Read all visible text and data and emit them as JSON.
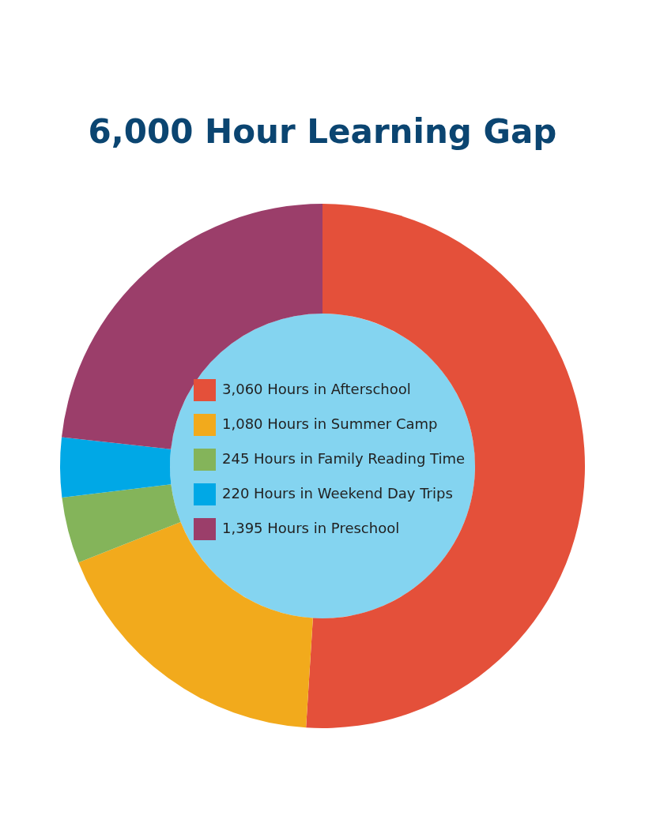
{
  "chart_data": {
    "type": "donut",
    "title": "6,000 Hour Learning Gap",
    "categories": [
      "3,060 Hours in Afterschool",
      "1,080 Hours in Summer Camp",
      "245 Hours in Family Reading Time",
      "220 Hours in Weekend Day Trips",
      "1,395 Hours in Preschool"
    ],
    "values": [
      3060,
      1080,
      245,
      220,
      1395
    ],
    "colors": [
      "#e4503a",
      "#f2aa1c",
      "#84b45a",
      "#00a8e6",
      "#9b3e6a"
    ],
    "legend": "center"
  }
}
